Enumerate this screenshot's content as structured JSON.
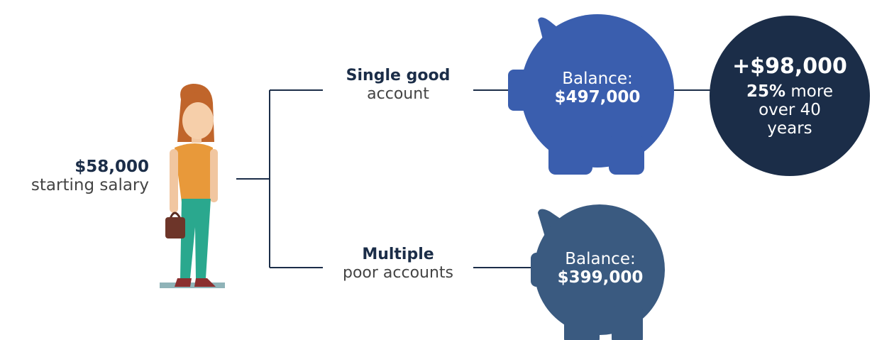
{
  "person": {
    "amount": "$58,000",
    "label": "starting salary"
  },
  "branches": [
    {
      "title": "Single good",
      "subtitle": "account",
      "balance_label": "Balance:",
      "balance": "$497,000"
    },
    {
      "title": "Multiple",
      "subtitle": "poor accounts",
      "balance_label": "Balance:",
      "balance": "$399,000"
    }
  ],
  "comparison": {
    "difference": "+$98,000",
    "percent": "25%",
    "text": "more over 40 years"
  }
}
